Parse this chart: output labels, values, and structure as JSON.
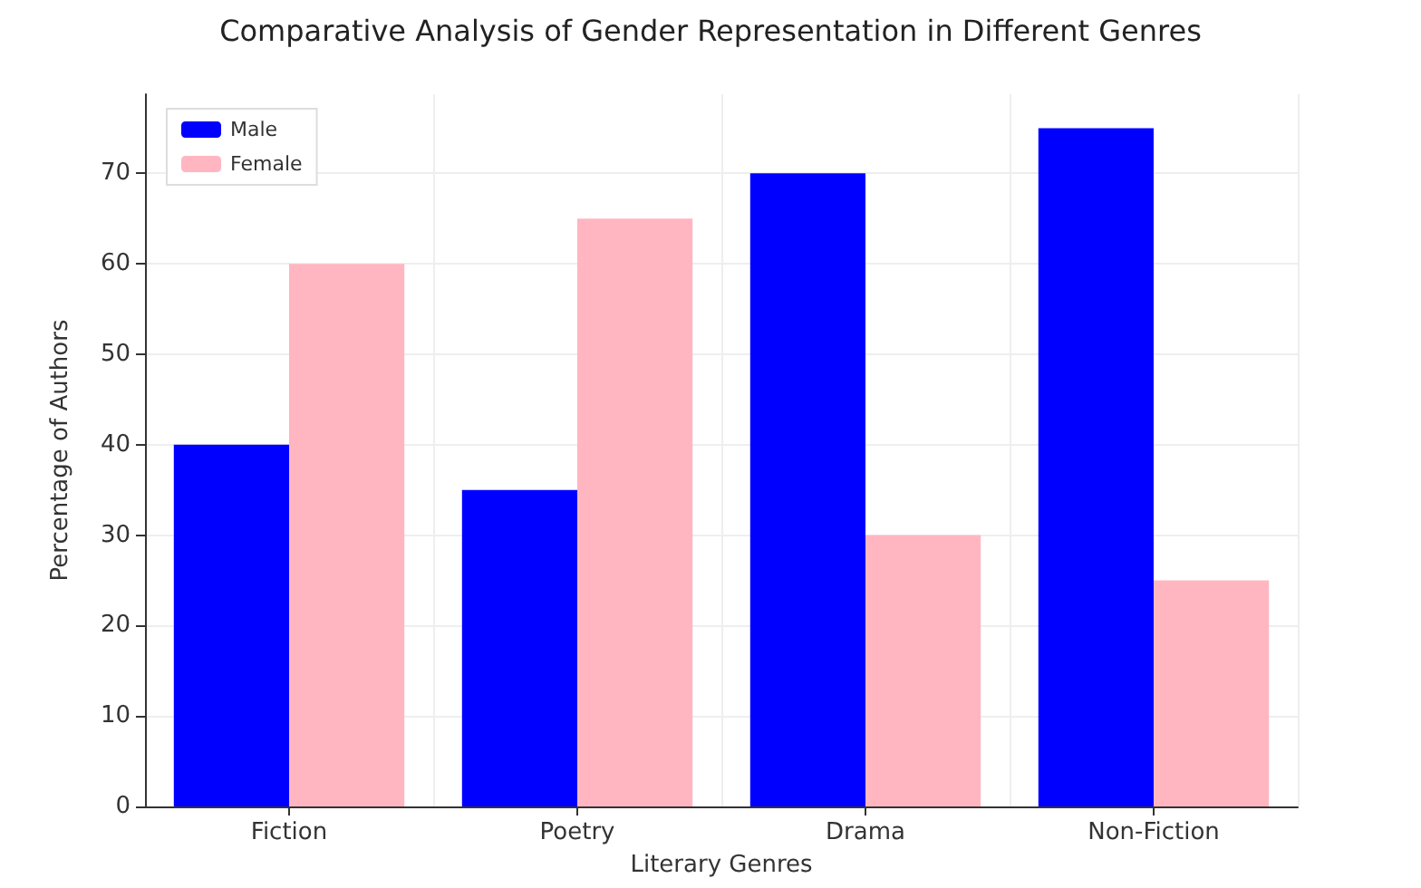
{
  "chart_data": {
    "type": "bar",
    "title": "Comparative Analysis of Gender Representation in Different Genres",
    "xlabel": "Literary Genres",
    "ylabel": "Percentage of Authors",
    "categories": [
      "Fiction",
      "Poetry",
      "Drama",
      "Non-Fiction"
    ],
    "series": [
      {
        "name": "Male",
        "color": "#0000ff",
        "values": [
          40,
          35,
          70,
          75
        ]
      },
      {
        "name": "Female",
        "color": "#ffb6c1",
        "values": [
          60,
          65,
          30,
          25
        ]
      }
    ],
    "ylim": [
      0,
      78.75
    ],
    "yticks": [
      0,
      10,
      20,
      30,
      40,
      50,
      60,
      70
    ],
    "grid": true,
    "legend": "top left"
  }
}
